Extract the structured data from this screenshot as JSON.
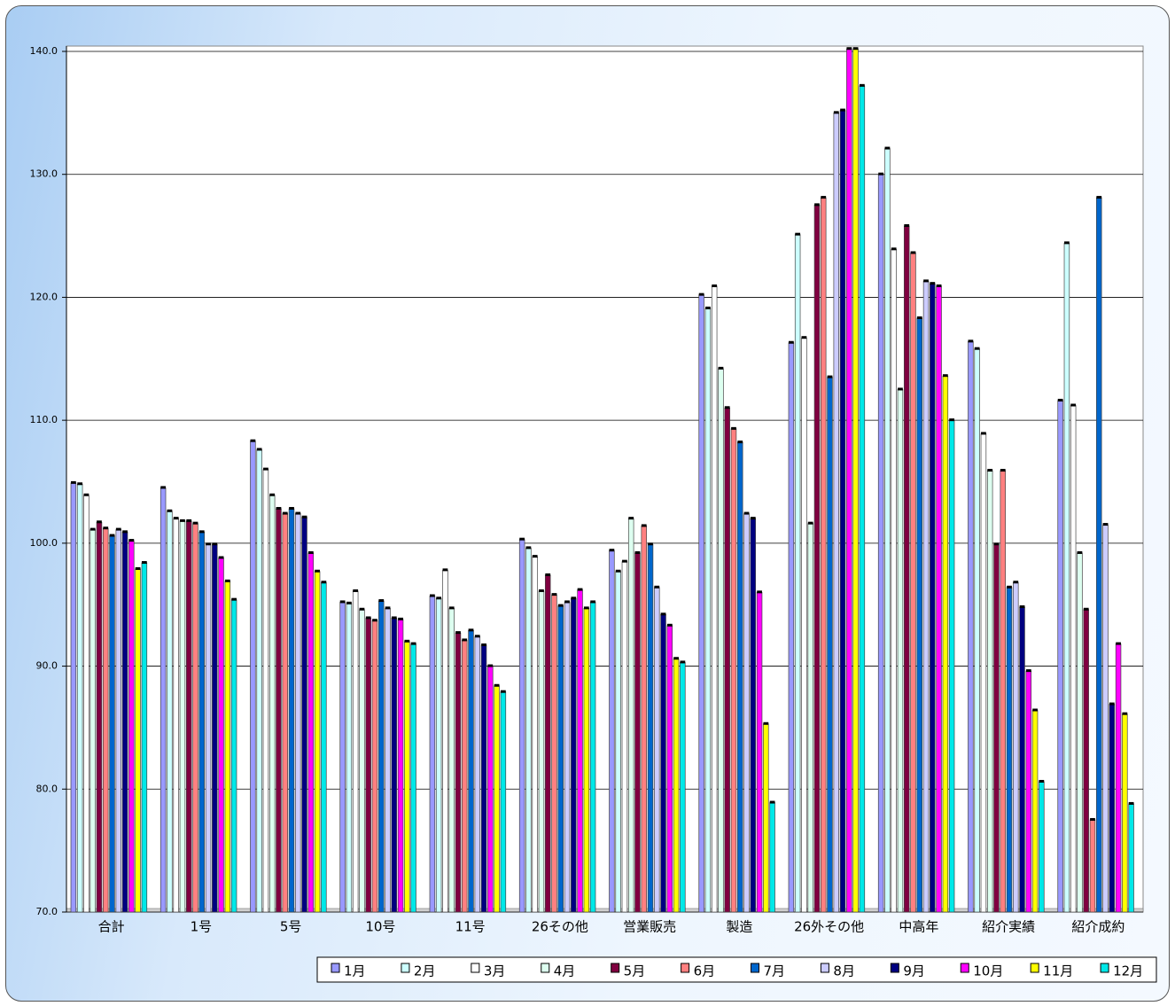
{
  "chart_data": {
    "type": "bar",
    "categories": [
      "合計",
      "1号",
      "5号",
      "10号",
      "11号",
      "26その他",
      "営業販売",
      "製造",
      "26外その他",
      "中高年",
      "紹介実績",
      "紹介成約"
    ],
    "series": [
      {
        "name": "1月",
        "color": "#9999ff",
        "values": [
          104.9,
          104.5,
          108.3,
          95.2,
          95.7,
          100.3,
          99.4,
          120.2,
          116.3,
          130.0,
          116.4,
          111.6
        ]
      },
      {
        "name": "2月",
        "color": "#ccffff",
        "values": [
          104.8,
          102.6,
          107.6,
          95.1,
          95.5,
          99.6,
          97.7,
          119.1,
          125.1,
          132.1,
          115.8,
          124.4
        ]
      },
      {
        "name": "3月",
        "color": "#ffffff",
        "values": [
          103.9,
          102.0,
          106.0,
          96.1,
          97.8,
          98.9,
          98.5,
          120.9,
          116.7,
          123.9,
          108.9,
          111.2
        ]
      },
      {
        "name": "4月",
        "color": "#ddfff0",
        "values": [
          101.1,
          101.8,
          103.9,
          94.6,
          94.7,
          96.1,
          102.0,
          114.2,
          101.6,
          112.5,
          105.9,
          99.2
        ]
      },
      {
        "name": "5月",
        "color": "#800040",
        "values": [
          101.7,
          101.8,
          102.8,
          93.9,
          92.7,
          97.4,
          99.2,
          111.0,
          127.5,
          125.8,
          99.9,
          94.6
        ]
      },
      {
        "name": "6月",
        "color": "#ff8080",
        "values": [
          101.2,
          101.6,
          102.4,
          93.7,
          92.1,
          95.8,
          101.4,
          109.3,
          128.1,
          123.6,
          105.9,
          77.5
        ]
      },
      {
        "name": "7月",
        "color": "#0066cc",
        "values": [
          100.6,
          100.9,
          102.8,
          95.3,
          92.9,
          94.9,
          99.9,
          108.2,
          113.5,
          118.3,
          96.4,
          128.1
        ]
      },
      {
        "name": "8月",
        "color": "#ccccff",
        "values": [
          101.1,
          99.9,
          102.4,
          94.7,
          92.4,
          95.2,
          96.4,
          102.4,
          135.0,
          121.3,
          96.8,
          101.5
        ]
      },
      {
        "name": "9月",
        "color": "#000080",
        "values": [
          100.9,
          99.9,
          102.1,
          93.9,
          91.7,
          95.5,
          94.2,
          102.0,
          135.2,
          121.1,
          94.8,
          86.9
        ]
      },
      {
        "name": "10月",
        "color": "#ff00ff",
        "values": [
          100.2,
          98.8,
          99.2,
          93.8,
          90.0,
          96.2,
          93.3,
          96.0,
          140.2,
          120.9,
          89.6,
          91.8
        ]
      },
      {
        "name": "11月",
        "color": "#ffff00",
        "values": [
          97.9,
          96.9,
          97.7,
          92.0,
          88.4,
          94.7,
          90.6,
          85.3,
          140.2,
          113.6,
          86.4,
          86.1
        ]
      },
      {
        "name": "12月",
        "color": "#00e8e8",
        "values": [
          98.4,
          95.4,
          96.8,
          91.8,
          87.9,
          95.2,
          90.3,
          78.9,
          137.2,
          110.0,
          80.6,
          78.8
        ]
      }
    ],
    "ylim": [
      70,
      140
    ],
    "yticks": [
      {
        "value": 70,
        "label": "70.0"
      },
      {
        "value": 80,
        "label": "80.0"
      },
      {
        "value": 90,
        "label": "90.0"
      },
      {
        "value": 100,
        "label": "100.0"
      },
      {
        "value": 110,
        "label": "110.0"
      },
      {
        "value": 120,
        "label": "120.0"
      },
      {
        "value": 130,
        "label": "130.0"
      },
      {
        "value": 140,
        "label": "140.0"
      }
    ],
    "grid": true,
    "legend": "bottom-right"
  }
}
